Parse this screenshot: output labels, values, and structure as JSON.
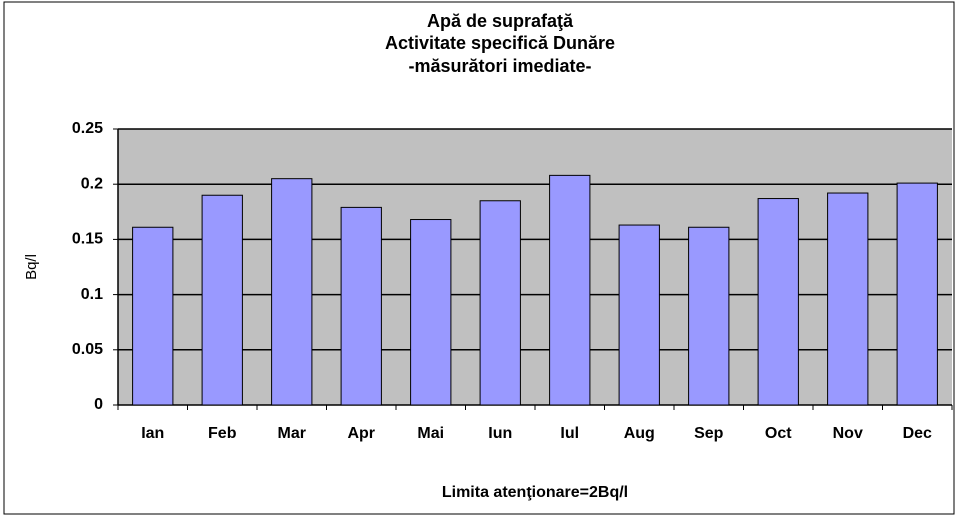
{
  "chart_data": {
    "type": "bar",
    "title": [
      "Apă de suprafaţă",
      "Activitate specifică Dunăre",
      "-măsurători imediate-"
    ],
    "x_label": "Limita atenţionare=2Bq/l",
    "y_label": "Bq/l",
    "categories": [
      "Ian",
      "Feb",
      "Mar",
      "Apr",
      "Mai",
      "Iun",
      "Iul",
      "Aug",
      "Sep",
      "Oct",
      "Nov",
      "Dec"
    ],
    "values": [
      0.161,
      0.19,
      0.205,
      0.179,
      0.168,
      0.185,
      0.208,
      0.163,
      0.161,
      0.187,
      0.192,
      0.201
    ],
    "color": "#9999ff",
    "ylim": [
      0,
      0.25
    ],
    "yticks": [
      0,
      0.05,
      0.1,
      0.15,
      0.2,
      0.25
    ],
    "grid": true
  }
}
